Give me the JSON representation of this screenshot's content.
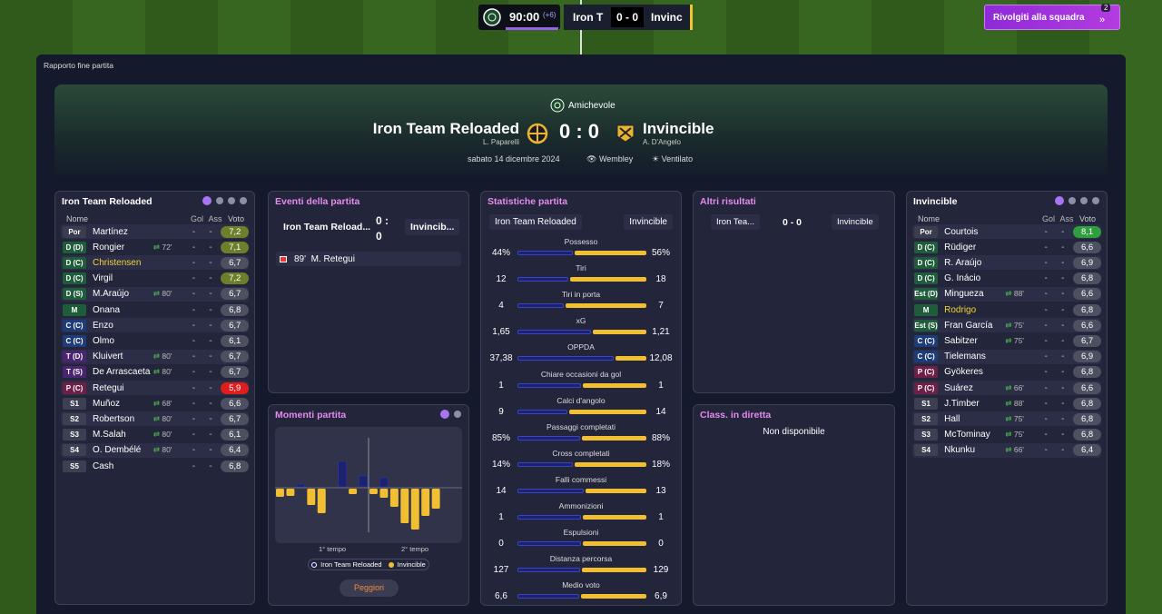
{
  "topbar": {
    "time": "90:00",
    "added": "(+6)",
    "home": "Iron T",
    "score": "0 - 0",
    "away": "Invinc",
    "button": "Rivolgiti alla squadra",
    "badge": "2"
  },
  "breadcrumb": "Rapporto fine partita",
  "header": {
    "competition": "Amichevole",
    "home": "Iron Team Reloaded",
    "home_manager": "L. Paparelli",
    "score": "0 : 0",
    "away": "Invincible",
    "away_manager": "A. D'Angelo",
    "date": "sabato 14 dicembre 2024",
    "stadium": "Wembley",
    "weather": "Ventilato"
  },
  "home_lineup": {
    "title": "Iron Team Reloaded",
    "columns": [
      "Nome",
      "Gol",
      "Ass",
      "Voto"
    ],
    "players": [
      {
        "pos": "Por",
        "name": "Martínez",
        "gol": "-",
        "ass": "-",
        "voto": "7,2"
      },
      {
        "pos": "D (D)",
        "name": "Rongier",
        "sub": "72'",
        "gol": "-",
        "ass": "-",
        "voto": "7,1"
      },
      {
        "pos": "D (C)",
        "name": "Christensen",
        "highlight": true,
        "gol": "-",
        "ass": "-",
        "voto": "6,7"
      },
      {
        "pos": "D (C)",
        "name": "Virgil",
        "gol": "-",
        "ass": "-",
        "voto": "7,2"
      },
      {
        "pos": "D (S)",
        "name": "M.Araújo",
        "sub": "80'",
        "gol": "-",
        "ass": "-",
        "voto": "6,7"
      },
      {
        "pos": "M",
        "name": "Onana",
        "gol": "-",
        "ass": "-",
        "voto": "6,8"
      },
      {
        "pos": "C (C)",
        "name": "Enzo",
        "gol": "-",
        "ass": "-",
        "voto": "6,7"
      },
      {
        "pos": "C (C)",
        "name": "Olmo",
        "gol": "-",
        "ass": "-",
        "voto": "6,1"
      },
      {
        "pos": "T (D)",
        "name": "Kluivert",
        "sub": "80'",
        "gol": "-",
        "ass": "-",
        "voto": "6,7"
      },
      {
        "pos": "T (S)",
        "name": "De Arrascaeta",
        "sub": "80'",
        "gol": "-",
        "ass": "-",
        "voto": "6,7"
      },
      {
        "pos": "P (C)",
        "name": "Retegui",
        "gol": "-",
        "ass": "-",
        "voto": "5,9"
      },
      {
        "pos": "S1",
        "name": "Muñoz",
        "sub": "68'",
        "gol": "-",
        "ass": "-",
        "voto": "6,6"
      },
      {
        "pos": "S2",
        "name": "Robertson",
        "sub": "80'",
        "gol": "-",
        "ass": "-",
        "voto": "6,7"
      },
      {
        "pos": "S3",
        "name": "M.Salah",
        "sub": "80'",
        "gol": "-",
        "ass": "-",
        "voto": "6,1"
      },
      {
        "pos": "S4",
        "name": "O. Dembélé",
        "sub": "80'",
        "gol": "-",
        "ass": "-",
        "voto": "6,4"
      },
      {
        "pos": "S5",
        "name": "Cash",
        "gol": "-",
        "ass": "-",
        "voto": "6,8"
      }
    ]
  },
  "events": {
    "title": "Eventi della partita",
    "home": "Iron Team Reload...",
    "score": "0 : 0",
    "away": "Invincib...",
    "items": [
      "89'  M. Retegui"
    ]
  },
  "momentum": {
    "title": "Momenti partita",
    "halves": [
      "1° tempo",
      "2° tempo"
    ],
    "legend": [
      "Iron Team Reloaded",
      "Invincible"
    ],
    "button": "Peggiori",
    "home": [
      0,
      0,
      3,
      0,
      0,
      0,
      28,
      0,
      12,
      0,
      10,
      0,
      0,
      0,
      0,
      0,
      0,
      0
    ],
    "away": [
      9,
      8,
      0,
      18,
      27,
      0,
      0,
      6,
      0,
      6,
      10,
      20,
      38,
      45,
      30,
      22,
      0,
      0
    ]
  },
  "stats": {
    "title": "Statistiche partita",
    "home": "Iron Team Reloaded",
    "away": "Invincible",
    "rows": [
      {
        "label": "Possesso",
        "home": "44%",
        "away": "56%"
      },
      {
        "label": "Tiri",
        "home": "12",
        "away": "18"
      },
      {
        "label": "Tiri in porta",
        "home": "4",
        "away": "7"
      },
      {
        "label": "xG",
        "home": "1,65",
        "away": "1,21"
      },
      {
        "label": "OPPDA",
        "home": "37,38",
        "away": "12,08"
      },
      {
        "label": "Chiare occasioni da gol",
        "home": "1",
        "away": "1"
      },
      {
        "label": "Calci d'angolo",
        "home": "9",
        "away": "14"
      },
      {
        "label": "Passaggi completati",
        "home": "85%",
        "away": "88%"
      },
      {
        "label": "Cross completati",
        "home": "14%",
        "away": "18%"
      },
      {
        "label": "Falli commessi",
        "home": "14",
        "away": "13"
      },
      {
        "label": "Ammonizioni",
        "home": "1",
        "away": "1"
      },
      {
        "label": "Espulsioni",
        "home": "0",
        "away": "0"
      },
      {
        "label": "Distanza percorsa",
        "home": "127",
        "away": "129"
      },
      {
        "label": "Medio voto",
        "home": "6,6",
        "away": "6,9"
      }
    ]
  },
  "other_results": {
    "title": "Altri risultati",
    "home": "Iron Tea...",
    "score": "0 - 0",
    "away": "Invincible"
  },
  "live_table": {
    "title": "Class. in diretta",
    "text": "Non disponibile"
  },
  "away_lineup": {
    "title": "Invincible",
    "columns": [
      "Nome",
      "Gol",
      "Ass",
      "Voto"
    ],
    "players": [
      {
        "pos": "Por",
        "name": "Courtois",
        "gol": "-",
        "ass": "-",
        "voto": "8,1"
      },
      {
        "pos": "D (C)",
        "name": "Rüdiger",
        "gol": "-",
        "ass": "-",
        "voto": "6,6"
      },
      {
        "pos": "D (C)",
        "name": "R. Araújo",
        "gol": "-",
        "ass": "-",
        "voto": "6,9"
      },
      {
        "pos": "D (C)",
        "name": "G. Inácio",
        "gol": "-",
        "ass": "-",
        "voto": "6,8"
      },
      {
        "pos": "Est (D)",
        "name": "Mingueza",
        "sub": "88'",
        "gol": "-",
        "ass": "-",
        "voto": "6,6"
      },
      {
        "pos": "M",
        "name": "Rodrigo",
        "highlight": true,
        "gol": "-",
        "ass": "-",
        "voto": "6,8"
      },
      {
        "pos": "Est (S)",
        "name": "Fran García",
        "sub": "75'",
        "gol": "-",
        "ass": "-",
        "voto": "6,6"
      },
      {
        "pos": "C (C)",
        "name": "Sabitzer",
        "sub": "75'",
        "gol": "-",
        "ass": "-",
        "voto": "6,7"
      },
      {
        "pos": "C (C)",
        "name": "Tielemans",
        "gol": "-",
        "ass": "-",
        "voto": "6,9"
      },
      {
        "pos": "P (C)",
        "name": "Gyökeres",
        "gol": "-",
        "ass": "-",
        "voto": "6,8"
      },
      {
        "pos": "P (C)",
        "name": "Suárez",
        "sub": "66'",
        "gol": "-",
        "ass": "-",
        "voto": "6,6"
      },
      {
        "pos": "S1",
        "name": "J.Timber",
        "sub": "88'",
        "gol": "-",
        "ass": "-",
        "voto": "6,8"
      },
      {
        "pos": "S2",
        "name": "Hall",
        "sub": "75'",
        "gol": "-",
        "ass": "-",
        "voto": "6,8"
      },
      {
        "pos": "S3",
        "name": "McTominay",
        "sub": "75'",
        "gol": "-",
        "ass": "-",
        "voto": "6,8"
      },
      {
        "pos": "S4",
        "name": "Nkunku",
        "sub": "66'",
        "gol": "-",
        "ass": "-",
        "voto": "6,4"
      }
    ]
  }
}
